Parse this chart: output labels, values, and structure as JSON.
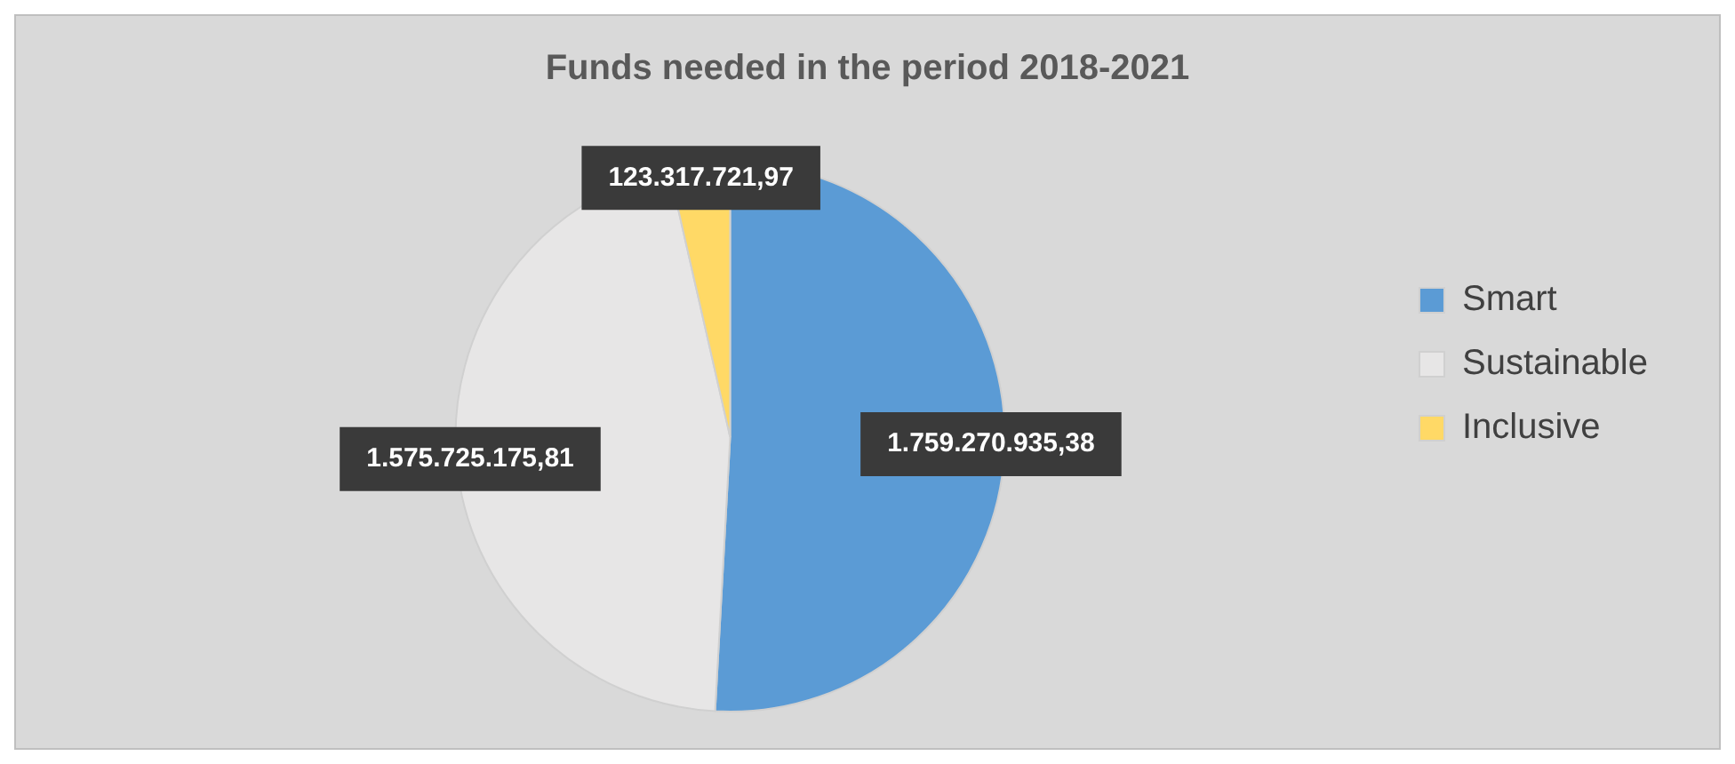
{
  "chart_data": {
    "type": "pie",
    "title": "Funds needed in the period 2018-2021",
    "categories": [
      "Smart",
      "Sustainable",
      "Inclusive"
    ],
    "values": [
      1759270935.38,
      1575725175.81,
      123317721.97
    ],
    "value_labels": [
      "1.759.270.935,38",
      "1.575.725.175,81",
      "123.317.721,97"
    ],
    "colors": [
      "#5b9bd5",
      "#e7e6e6",
      "#ffd966"
    ],
    "legend": "right"
  }
}
